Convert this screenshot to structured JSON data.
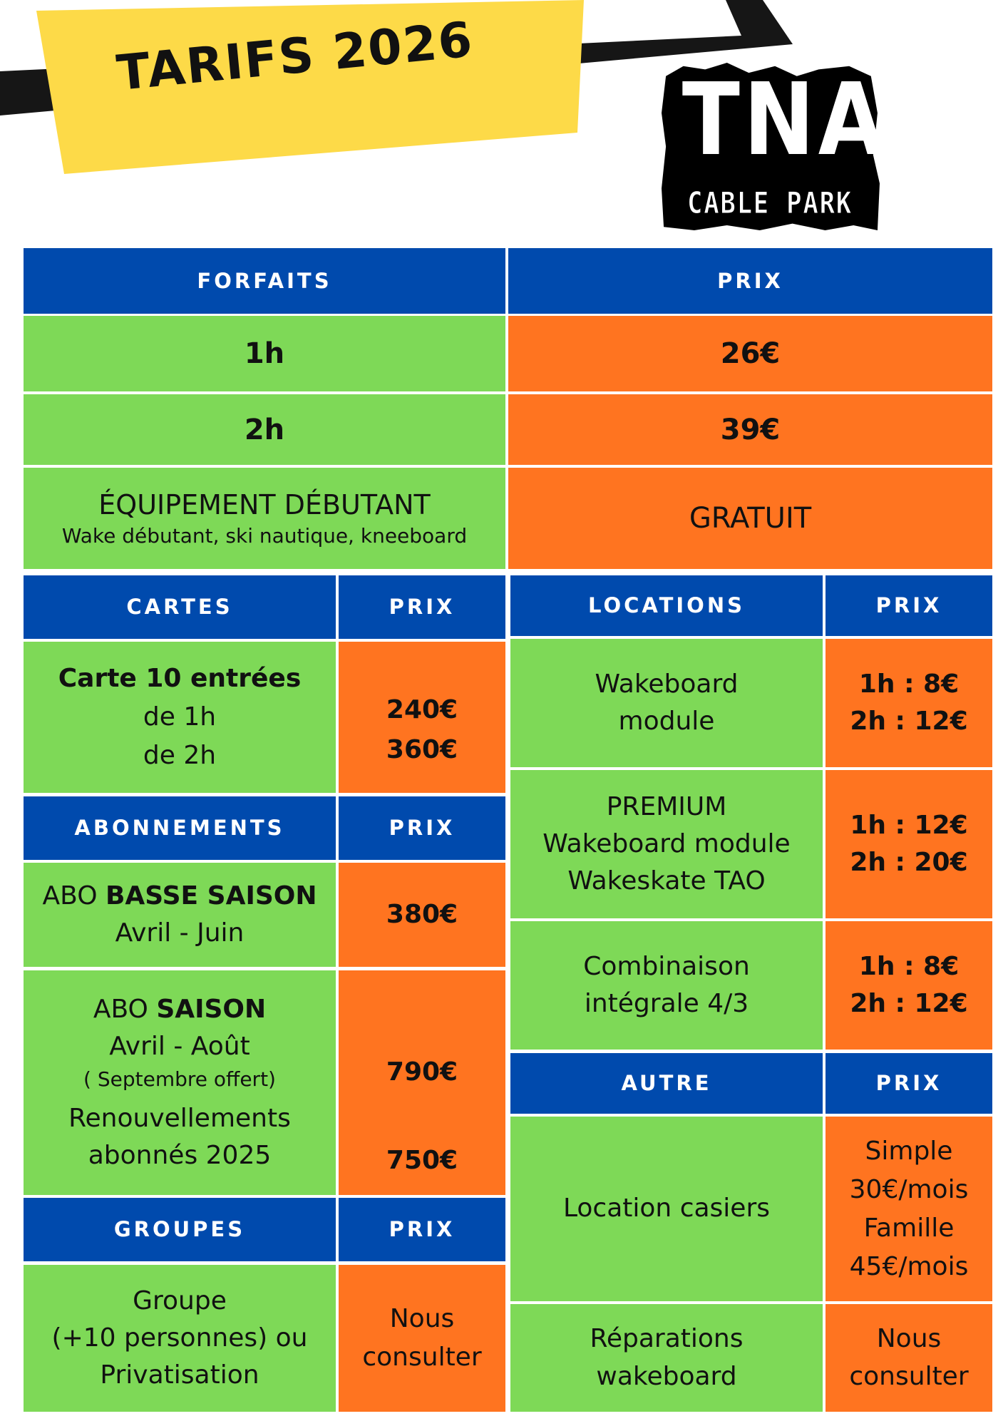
{
  "header": {
    "title": "TARIFS 2026",
    "logo_main": "TNA",
    "logo_sub": "CABLE PARK"
  },
  "colors": {
    "header_blue": "#004aad",
    "green": "#7ed957",
    "orange": "#ff7420",
    "yellow": "#fdda48"
  },
  "forfaits": {
    "header": "FORFAITS",
    "price_header": "PRIX",
    "rows": [
      {
        "label": "1h",
        "price": "26€"
      },
      {
        "label": "2h",
        "price": "39€"
      },
      {
        "label": "ÉQUIPEMENT DÉBUTANT",
        "sub": "Wake débutant, ski nautique, kneeboard",
        "price": "GRATUIT"
      }
    ]
  },
  "cartes": {
    "header": "CARTES",
    "price_header": "PRIX",
    "title": "Carte 10 entrées",
    "line1": "de 1h",
    "line2": "de 2h",
    "price1": "240€",
    "price2": "360€"
  },
  "abonnements": {
    "header": "ABONNEMENTS",
    "price_header": "PRIX",
    "basse": {
      "prefix": "ABO ",
      "bold": "BASSE SAISON",
      "dates": "Avril - Juin",
      "price": "380€"
    },
    "saison": {
      "prefix": "ABO ",
      "bold": "SAISON",
      "dates": "Avril - Août",
      "note": "( Septembre offert)",
      "price": "790€",
      "renew1": "Renouvellements",
      "renew2": "abonnés 2025",
      "renew_price": "750€"
    }
  },
  "groupes": {
    "header": "GROUPES",
    "price_header": "PRIX",
    "line1": "Groupe",
    "line2": "(+10 personnes) ou",
    "line3": "Privatisation",
    "price1": "Nous",
    "price2": "consulter"
  },
  "locations": {
    "header": "LOCATIONS",
    "price_header": "PRIX",
    "rows": [
      {
        "lines": [
          "Wakeboard",
          "module"
        ],
        "prices": [
          "1h : 8€",
          "2h : 12€"
        ]
      },
      {
        "lines": [
          "PREMIUM",
          "Wakeboard module",
          "Wakeskate TAO"
        ],
        "prices": [
          "1h : 12€",
          "2h : 20€"
        ]
      },
      {
        "lines": [
          "Combinaison",
          "intégrale 4/3"
        ],
        "prices": [
          "1h : 8€",
          "2h : 12€"
        ]
      }
    ]
  },
  "autre": {
    "header": "AUTRE",
    "price_header": "PRIX",
    "rows": [
      {
        "lines": [
          "Location casiers"
        ],
        "prices": [
          "Simple",
          "30€/mois",
          "Famille",
          "45€/mois"
        ]
      },
      {
        "lines": [
          "Réparations",
          "wakeboard"
        ],
        "prices": [
          "Nous",
          "consulter"
        ]
      }
    ]
  }
}
